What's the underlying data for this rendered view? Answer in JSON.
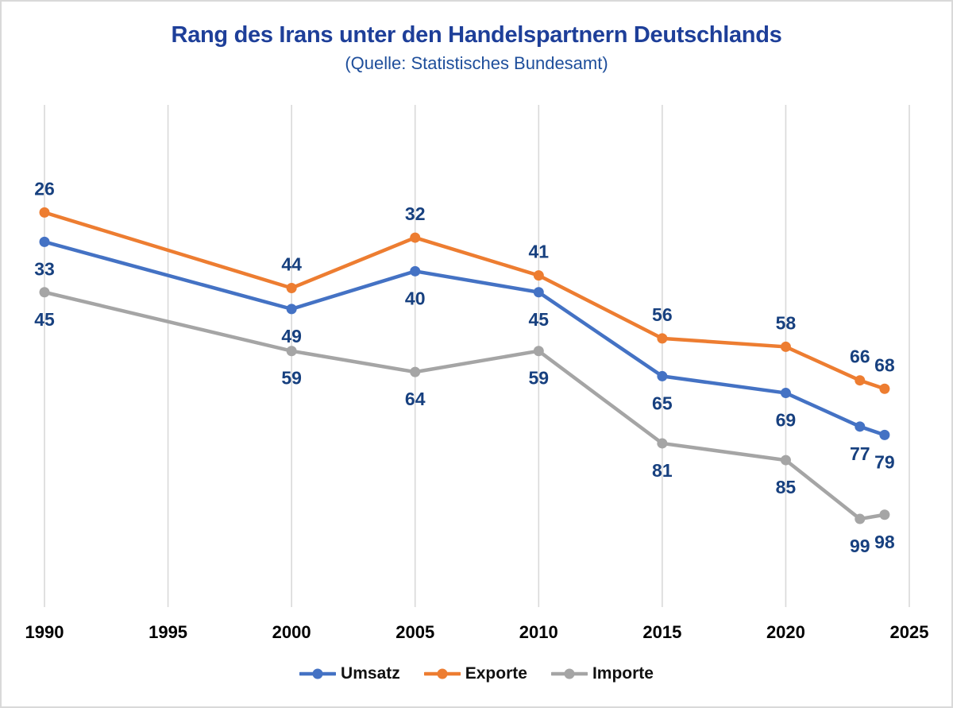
{
  "chart_data": {
    "type": "line",
    "title": "Rang des Irans unter den Handelspartnern Deutschlands",
    "subtitle": "(Quelle: Statistisches Bundesamt)",
    "x": [
      1990,
      2000,
      2005,
      2010,
      2015,
      2020,
      2023,
      2024
    ],
    "x_ticks": [
      "1990",
      "1995",
      "2000",
      "2005",
      "2010",
      "2015",
      "2020",
      "2025"
    ],
    "x_range": [
      1990,
      2025
    ],
    "y_range": [
      0,
      120
    ],
    "y_inverted": true,
    "grid": "vertical-only",
    "legend_position": "bottom",
    "series": [
      {
        "name": "Umsatz",
        "color": "#4472C4",
        "values": [
          33,
          49,
          40,
          45,
          65,
          69,
          77,
          79
        ],
        "label_position": "below"
      },
      {
        "name": "Exporte",
        "color": "#ED7D31",
        "values": [
          26,
          44,
          32,
          41,
          56,
          58,
          66,
          68
        ],
        "label_position": "above"
      },
      {
        "name": "Importe",
        "color": "#A5A5A5",
        "values": [
          45,
          59,
          64,
          59,
          81,
          85,
          99,
          98
        ],
        "label_position": "below"
      }
    ],
    "colors": {
      "title": "#1E3F99",
      "subtitle": "#1E4E9B",
      "data_label": "#17407F",
      "gridline": "#D9D9D9",
      "axis_tick_label": "#000000",
      "frame_border": "#D9D9D9",
      "background": "#FFFFFF"
    }
  }
}
